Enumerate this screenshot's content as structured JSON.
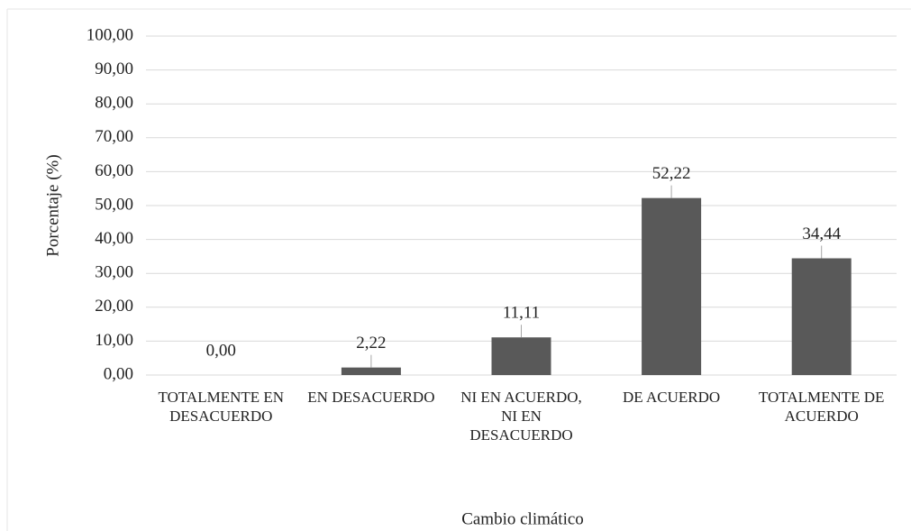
{
  "chart_data": {
    "type": "bar",
    "x_label": "Cambio climático",
    "y_label": "Porcentaje (%)",
    "categories": [
      "TOTALMENTE EN DESACUERDO",
      "EN DESACUERDO",
      "NI EN ACUERDO, NI EN DESACUERDO",
      "DE ACUERDO",
      "TOTALMENTE DE ACUERDO"
    ],
    "values": [
      0,
      2.22,
      11.11,
      52.22,
      34.44
    ],
    "value_labels": [
      "0,00",
      "2,22",
      "11,11",
      "52,22",
      "34,44"
    ],
    "color": "#595959",
    "ylim": [
      0,
      100
    ],
    "yticks": [
      {
        "value": 0,
        "label": "0,00"
      },
      {
        "value": 10,
        "label": "10,00"
      },
      {
        "value": 20,
        "label": "20,00"
      },
      {
        "value": 30,
        "label": "30,00"
      },
      {
        "value": 40,
        "label": "40,00"
      },
      {
        "value": 50,
        "label": "50,00"
      },
      {
        "value": 60,
        "label": "60,00"
      },
      {
        "value": 70,
        "label": "70,00"
      },
      {
        "value": 80,
        "label": "80,00"
      },
      {
        "value": 90,
        "label": "90,00"
      },
      {
        "value": 100,
        "label": "100,00"
      }
    ],
    "grid": true
  }
}
